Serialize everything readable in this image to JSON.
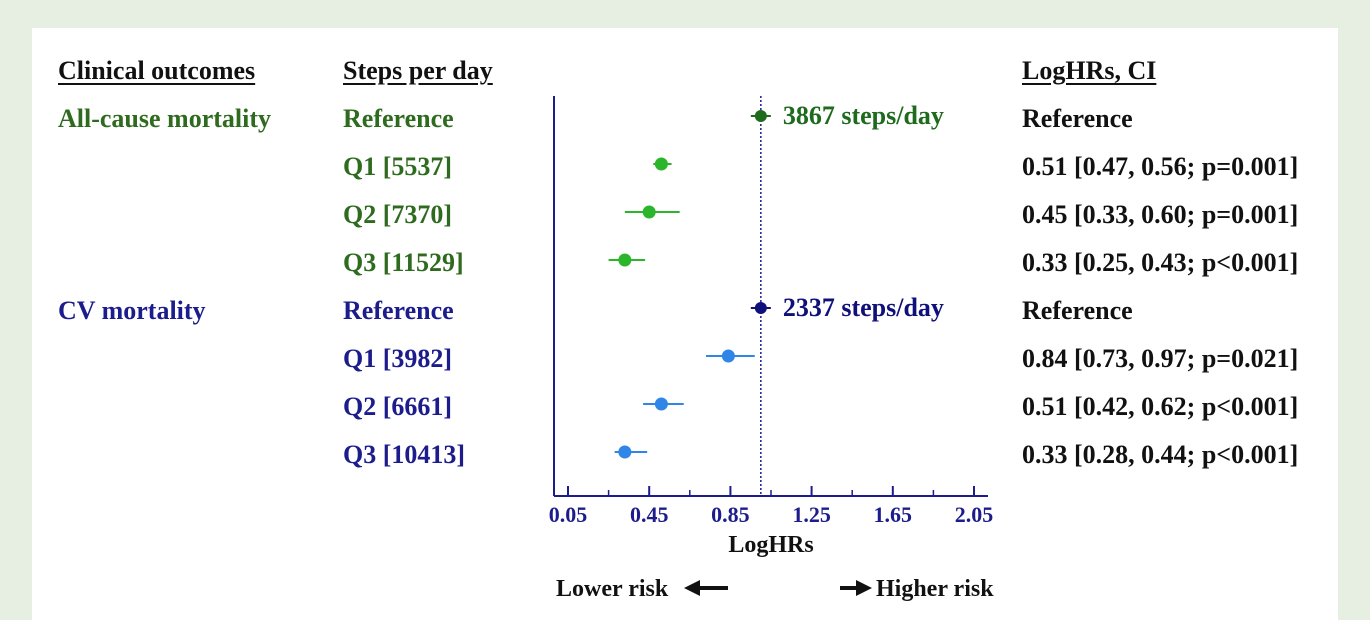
{
  "headers": {
    "outcomes": "Clinical outcomes",
    "steps": "Steps per day",
    "loghr": "LogHRs, CI"
  },
  "groups": [
    {
      "outcome": "All-cause mortality",
      "color": "#2e6b1f",
      "rows": [
        {
          "label": "Reference",
          "ci_text": "Reference"
        },
        {
          "label": "Q1 [5537]",
          "ci_text": "0.51 [0.47, 0.56; p=0.001]"
        },
        {
          "label": "Q2 [7370]",
          "ci_text": "0.45 [0.33, 0.60; p=0.001]"
        },
        {
          "label": "Q3 [11529]",
          "ci_text": "0.33 [0.25, 0.43; p<0.001]"
        }
      ]
    },
    {
      "outcome": "CV mortality",
      "color": "#1c1c8c",
      "rows": [
        {
          "label": "Reference",
          "ci_text": "Reference"
        },
        {
          "label": "Q1 [3982]",
          "ci_text": "0.84 [0.73, 0.97; p=0.021]"
        },
        {
          "label": "Q2 [6661]",
          "ci_text": "0.51 [0.42, 0.62; p<0.001]"
        },
        {
          "label": "Q3 [10413]",
          "ci_text": "0.33 [0.28, 0.44; p<0.001]"
        }
      ]
    }
  ],
  "chart_data": {
    "type": "scatter",
    "subtype": "forest-plot",
    "xlabel": "LogHRs",
    "xlim": [
      0.0,
      2.15
    ],
    "xticks": [
      0.05,
      0.45,
      0.85,
      1.25,
      1.65,
      2.05
    ],
    "xtick_labels": [
      "0.05",
      "0.45",
      "0.85",
      "1.25",
      "1.65",
      "2.05"
    ],
    "reference_line": 1.0,
    "series": [
      {
        "name": "All-cause mortality",
        "marker_color": "#2bb52b",
        "reference_color": "#1e6b1e",
        "reference_label": "3867 steps/day",
        "points": [
          {
            "y": "Reference",
            "x": 1.0,
            "lo": 1.0,
            "hi": 1.0,
            "reference": true
          },
          {
            "y": "Q1 [5537]",
            "x": 0.51,
            "lo": 0.47,
            "hi": 0.56
          },
          {
            "y": "Q2 [7370]",
            "x": 0.45,
            "lo": 0.33,
            "hi": 0.6
          },
          {
            "y": "Q3 [11529]",
            "x": 0.33,
            "lo": 0.25,
            "hi": 0.43
          }
        ]
      },
      {
        "name": "CV mortality",
        "marker_color": "#2f86e6",
        "reference_color": "#10107a",
        "reference_label": "2337 steps/day",
        "points": [
          {
            "y": "Reference",
            "x": 1.0,
            "lo": 1.0,
            "hi": 1.0,
            "reference": true
          },
          {
            "y": "Q1 [3982]",
            "x": 0.84,
            "lo": 0.73,
            "hi": 0.97
          },
          {
            "y": "Q2 [6661]",
            "x": 0.51,
            "lo": 0.42,
            "hi": 0.62
          },
          {
            "y": "Q3 [10413]",
            "x": 0.33,
            "lo": 0.28,
            "hi": 0.44
          }
        ]
      }
    ],
    "annotations": {
      "lower": "Lower risk",
      "higher": "Higher risk"
    }
  }
}
